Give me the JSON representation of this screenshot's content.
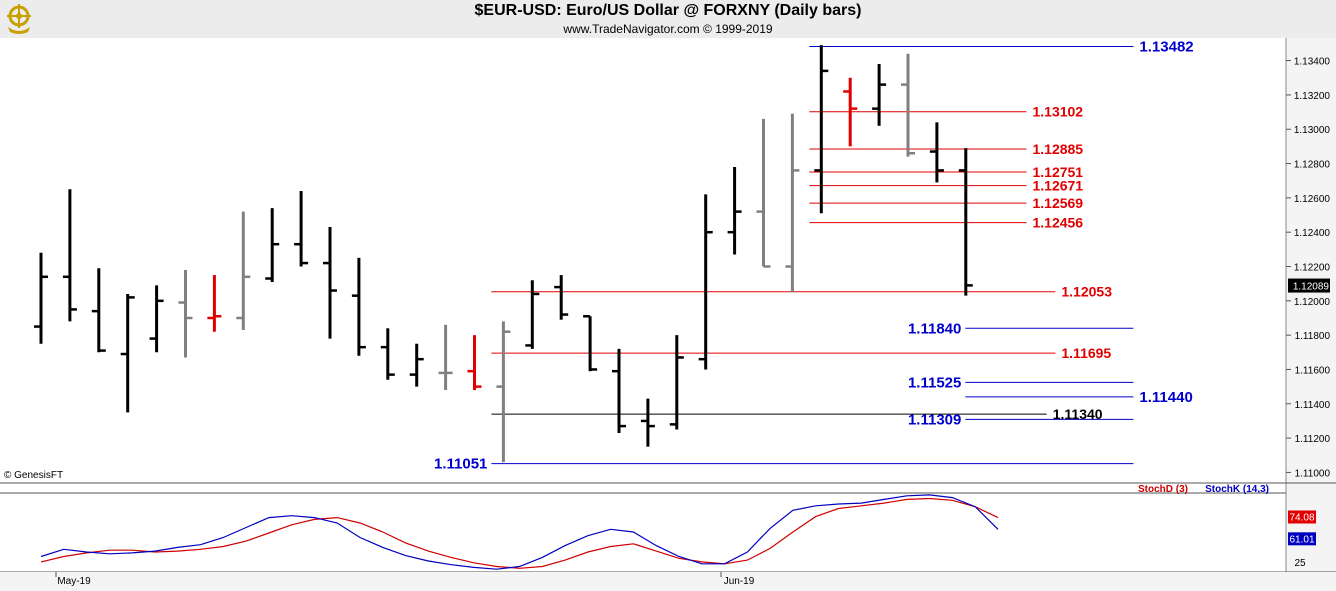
{
  "header": {
    "title": "$EUR-USD:  Euro/US Dollar @ FORXNY  (Daily bars)",
    "subtitle": "www.TradeNavigator.com © 1999-2019",
    "logo_icon": "ship-wheel-logo-icon"
  },
  "copyright": "© GenesisFT",
  "colors": {
    "up_bar": "#000000",
    "gray_bar": "#808080",
    "red_bar": "#e00000",
    "support_blue": "#0000aa",
    "level_red": "#e00000",
    "stoch_d": "#d00000",
    "stoch_k": "#0000c0"
  },
  "chart_data": [
    {
      "type": "ohlc",
      "title": "$EUR-USD:  Euro/US Dollar @ FORXNY  (Daily bars)",
      "ylim": [
        1.1095,
        1.1352
      ],
      "y_ticks": [
        "1.13400",
        "1.13200",
        "1.13000",
        "1.12800",
        "1.12600",
        "1.12400",
        "1.12200",
        "1.12000",
        "1.11800",
        "1.11600",
        "1.11400",
        "1.11200",
        "1.11000"
      ],
      "last_price": "1.12089",
      "x_labels": [
        "May-19",
        "Jun-19"
      ],
      "bars": [
        {
          "o": 1.1185,
          "h": 1.1228,
          "l": 1.1175,
          "c": 1.1214,
          "color": "black"
        },
        {
          "o": 1.1214,
          "h": 1.1265,
          "l": 1.1188,
          "c": 1.1195,
          "color": "black"
        },
        {
          "o": 1.1194,
          "h": 1.1219,
          "l": 1.117,
          "c": 1.1171,
          "color": "black"
        },
        {
          "o": 1.1169,
          "h": 1.1204,
          "l": 1.1135,
          "c": 1.1202,
          "color": "black"
        },
        {
          "o": 1.1178,
          "h": 1.1209,
          "l": 1.117,
          "c": 1.12,
          "color": "black"
        },
        {
          "o": 1.1199,
          "h": 1.1218,
          "l": 1.1167,
          "c": 1.119,
          "color": "gray"
        },
        {
          "o": 1.119,
          "h": 1.1215,
          "l": 1.1182,
          "c": 1.1191,
          "color": "red"
        },
        {
          "o": 1.119,
          "h": 1.1252,
          "l": 1.1183,
          "c": 1.1214,
          "color": "gray"
        },
        {
          "o": 1.1213,
          "h": 1.1254,
          "l": 1.1211,
          "c": 1.1233,
          "color": "black"
        },
        {
          "o": 1.1233,
          "h": 1.1264,
          "l": 1.122,
          "c": 1.1222,
          "color": "black"
        },
        {
          "o": 1.1222,
          "h": 1.1243,
          "l": 1.1178,
          "c": 1.1206,
          "color": "black"
        },
        {
          "o": 1.1203,
          "h": 1.1225,
          "l": 1.1168,
          "c": 1.1173,
          "color": "black"
        },
        {
          "o": 1.1173,
          "h": 1.1184,
          "l": 1.1154,
          "c": 1.1157,
          "color": "black"
        },
        {
          "o": 1.1157,
          "h": 1.1175,
          "l": 1.115,
          "c": 1.1166,
          "color": "black"
        },
        {
          "o": 1.1158,
          "h": 1.1186,
          "l": 1.1148,
          "c": 1.1158,
          "color": "gray"
        },
        {
          "o": 1.1159,
          "h": 1.118,
          "l": 1.1148,
          "c": 1.115,
          "color": "red"
        },
        {
          "o": 1.115,
          "h": 1.1188,
          "l": 1.1106,
          "c": 1.1182,
          "color": "gray"
        },
        {
          "o": 1.1174,
          "h": 1.1212,
          "l": 1.1172,
          "c": 1.1204,
          "color": "black"
        },
        {
          "o": 1.1208,
          "h": 1.1215,
          "l": 1.1189,
          "c": 1.1192,
          "color": "black"
        },
        {
          "o": 1.1191,
          "h": 1.1191,
          "l": 1.1159,
          "c": 1.116,
          "color": "black"
        },
        {
          "o": 1.1159,
          "h": 1.1172,
          "l": 1.1123,
          "c": 1.1127,
          "color": "black"
        },
        {
          "o": 1.113,
          "h": 1.1143,
          "l": 1.1115,
          "c": 1.1127,
          "color": "black"
        },
        {
          "o": 1.1128,
          "h": 1.118,
          "l": 1.1125,
          "c": 1.1167,
          "color": "black"
        },
        {
          "o": 1.1166,
          "h": 1.1262,
          "l": 1.116,
          "c": 1.124,
          "color": "black"
        },
        {
          "o": 1.124,
          "h": 1.1278,
          "l": 1.1227,
          "c": 1.1252,
          "color": "black"
        },
        {
          "o": 1.1252,
          "h": 1.1306,
          "l": 1.122,
          "c": 1.122,
          "color": "gray"
        },
        {
          "o": 1.122,
          "h": 1.1309,
          "l": 1.1205,
          "c": 1.1276,
          "color": "gray"
        },
        {
          "o": 1.1276,
          "h": 1.1349,
          "l": 1.1251,
          "c": 1.1334,
          "color": "black"
        },
        {
          "o": 1.1322,
          "h": 1.133,
          "l": 1.129,
          "c": 1.1312,
          "color": "red"
        },
        {
          "o": 1.1312,
          "h": 1.1338,
          "l": 1.1302,
          "c": 1.1326,
          "color": "black"
        },
        {
          "o": 1.1326,
          "h": 1.1344,
          "l": 1.1284,
          "c": 1.1286,
          "color": "gray"
        },
        {
          "o": 1.1287,
          "h": 1.1304,
          "l": 1.1269,
          "c": 1.1276,
          "color": "black"
        },
        {
          "o": 1.1276,
          "h": 1.1289,
          "l": 1.1203,
          "c": 1.1209,
          "color": "black"
        }
      ],
      "levels": [
        {
          "value": 1.13482,
          "label": "1.13482",
          "color": "blue",
          "from": 27,
          "to": 37.8,
          "label_side": "right"
        },
        {
          "value": 1.13102,
          "label": "1.13102",
          "color": "red",
          "from": 27,
          "to": 34.1,
          "label_side": "right"
        },
        {
          "value": 1.12885,
          "label": "1.12885",
          "color": "red",
          "from": 27,
          "to": 34.1,
          "label_side": "right"
        },
        {
          "value": 1.12751,
          "label": "1.12751",
          "color": "red",
          "from": 27,
          "to": 34.1,
          "label_side": "right"
        },
        {
          "value": 1.12671,
          "label": "1.12671",
          "color": "red",
          "from": 27,
          "to": 34.1,
          "label_side": "right"
        },
        {
          "value": 1.12569,
          "label": "1.12569",
          "color": "red",
          "from": 27,
          "to": 34.1,
          "label_side": "right"
        },
        {
          "value": 1.12456,
          "label": "1.12456",
          "color": "red",
          "from": 27,
          "to": 34.1,
          "label_side": "right"
        },
        {
          "value": 1.12053,
          "label": "1.12053",
          "color": "red",
          "from": 16,
          "to": 35.1,
          "label_side": "right"
        },
        {
          "value": 1.1184,
          "label": "1.11840",
          "color": "blue",
          "from": 32.4,
          "to": 37.8,
          "label_side": "left"
        },
        {
          "value": 1.11695,
          "label": "1.11695",
          "color": "red",
          "from": 16,
          "to": 35.1,
          "label_side": "right"
        },
        {
          "value": 1.11525,
          "label": "1.11525",
          "color": "blue",
          "from": 32.4,
          "to": 37.8,
          "label_side": "left"
        },
        {
          "value": 1.1144,
          "label": "1.11440",
          "color": "blue",
          "from": 32.4,
          "to": 37.8,
          "label_side": "right"
        },
        {
          "value": 1.1134,
          "label": "1.11340",
          "color": "black",
          "from": 16,
          "to": 34.8,
          "label_side": "right"
        },
        {
          "value": 1.11309,
          "label": "1.11309",
          "color": "blue",
          "from": 32.4,
          "to": 37.8,
          "label_side": "left"
        },
        {
          "value": 1.11051,
          "label": "1.11051",
          "color": "blue",
          "from": 16,
          "to": 37.8,
          "label_side": "left"
        }
      ]
    },
    {
      "type": "line",
      "legend": [
        "StochD (3)",
        "StochK (14,3)"
      ],
      "ylim": [
        15,
        100
      ],
      "y_ticks": [
        "25"
      ],
      "last_values": {
        "StochD": "74.08",
        "StochK": "61.01"
      },
      "series": [
        {
          "name": "StochD (3)",
          "color": "red",
          "values": [
            25,
            31,
            35,
            38,
            38,
            36,
            37,
            39,
            42,
            48,
            57,
            66,
            72,
            74,
            68,
            58,
            46,
            37,
            30,
            24,
            20,
            18,
            20,
            27,
            36,
            42,
            45,
            37,
            29,
            25,
            23,
            27,
            40,
            58,
            75,
            84,
            87,
            90,
            94,
            95,
            93,
            86,
            74
          ]
        },
        {
          "name": "StochK (14,3)",
          "color": "blue",
          "values": [
            31,
            39,
            36,
            34,
            35,
            37,
            41,
            44,
            52,
            63,
            74,
            76,
            74,
            68,
            52,
            41,
            32,
            26,
            22,
            19,
            17,
            20,
            30,
            43,
            54,
            61,
            58,
            43,
            31,
            23,
            23,
            36,
            62,
            82,
            87,
            89,
            90,
            94,
            98,
            99,
            96,
            86,
            61
          ]
        }
      ]
    }
  ]
}
